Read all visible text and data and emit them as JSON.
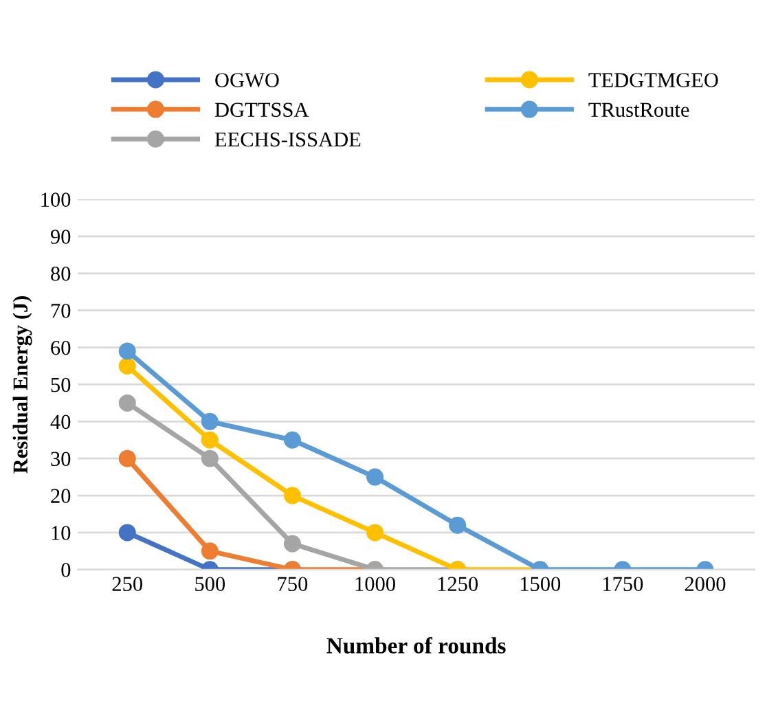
{
  "chart_data": {
    "type": "line",
    "xlabel": "Number of rounds",
    "ylabel": "Residual Energy (J)",
    "categories": [
      "250",
      "500",
      "750",
      "1000",
      "1250",
      "1500",
      "1750",
      "2000"
    ],
    "series": [
      {
        "name": "OGWO",
        "color": "#4472c4",
        "values": [
          10,
          0,
          0,
          null,
          null,
          null,
          null,
          null
        ]
      },
      {
        "name": "DGTTSSA",
        "color": "#ed7d31",
        "values": [
          30,
          5,
          0,
          0,
          null,
          null,
          null,
          null
        ]
      },
      {
        "name": "EECHS-ISSADE",
        "color": "#a5a5a5",
        "values": [
          45,
          30,
          7,
          0,
          0,
          null,
          null,
          null
        ]
      },
      {
        "name": "TEDGTMGEO",
        "color": "#ffc000",
        "values": [
          55,
          35,
          20,
          10,
          0,
          0,
          null,
          null
        ]
      },
      {
        "name": "TRustRoute",
        "color": "#5b9bd5",
        "values": [
          59,
          40,
          35,
          25,
          12,
          0,
          0,
          0
        ]
      }
    ],
    "ylim": [
      0,
      100
    ],
    "yticks": [
      0,
      10,
      20,
      30,
      40,
      50,
      60,
      70,
      80,
      90,
      100
    ],
    "grid": "y",
    "legend": "top",
    "marker": "circle",
    "line_style": "solid"
  }
}
